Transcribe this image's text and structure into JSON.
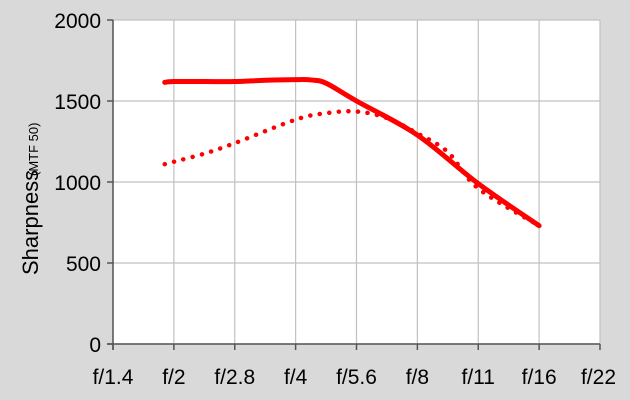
{
  "chart_data": {
    "type": "line",
    "title": "",
    "xlabel": "",
    "ylabel": "Sharpness",
    "ylabel_unit": "(MTF 50)",
    "x": [
      "f/1.4",
      "f/2",
      "f/2.8",
      "f/4",
      "f/5.6",
      "f/8",
      "f/11",
      "f/16",
      "f/22"
    ],
    "ylim": [
      0,
      2000
    ],
    "yticks": [
      0,
      500,
      1000,
      1500,
      2000
    ],
    "grid": true,
    "legend": "none",
    "series": [
      {
        "style": "solid",
        "color": "#ff0000",
        "points": [
          {
            "x": 0.85,
            "y": 1615
          },
          {
            "x": 1.0,
            "y": 1620
          },
          {
            "x": 1.5,
            "y": 1620
          },
          {
            "x": 2.0,
            "y": 1620
          },
          {
            "x": 2.5,
            "y": 1628
          },
          {
            "x": 3.0,
            "y": 1632
          },
          {
            "x": 3.25,
            "y": 1630
          },
          {
            "x": 3.5,
            "y": 1610
          },
          {
            "x": 4.0,
            "y": 1500
          },
          {
            "x": 5.0,
            "y": 1290
          },
          {
            "x": 6.0,
            "y": 990
          },
          {
            "x": 7.0,
            "y": 730
          }
        ]
      },
      {
        "style": "dotted",
        "color": "#ff0000",
        "points": [
          {
            "x": 0.85,
            "y": 1110
          },
          {
            "x": 1.0,
            "y": 1125
          },
          {
            "x": 1.5,
            "y": 1175
          },
          {
            "x": 2.0,
            "y": 1240
          },
          {
            "x": 3.0,
            "y": 1385
          },
          {
            "x": 3.5,
            "y": 1425
          },
          {
            "x": 4.0,
            "y": 1435
          },
          {
            "x": 4.5,
            "y": 1395
          },
          {
            "x": 5.0,
            "y": 1300
          },
          {
            "x": 5.5,
            "y": 1185
          },
          {
            "x": 6.0,
            "y": 960
          },
          {
            "x": 7.0,
            "y": 730
          }
        ]
      }
    ]
  }
}
